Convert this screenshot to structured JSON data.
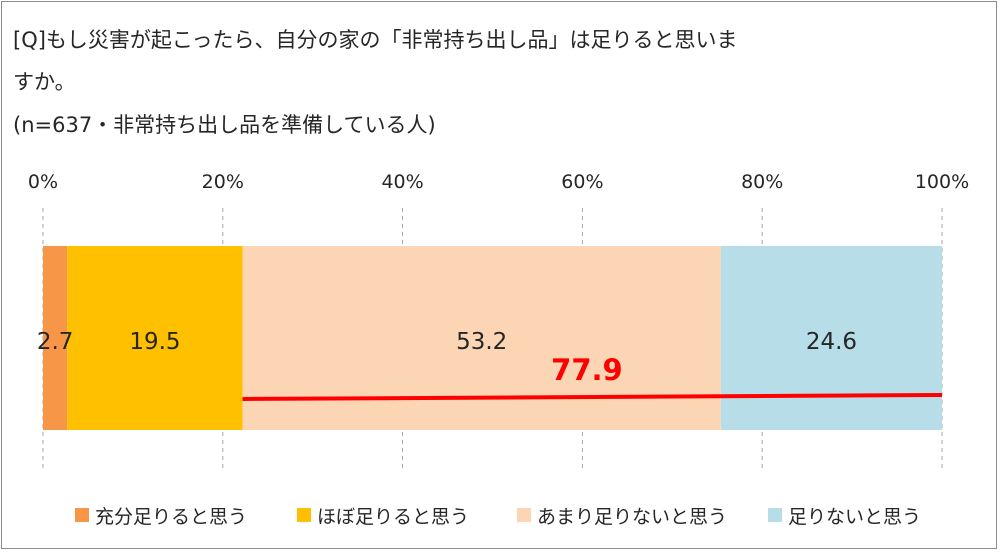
{
  "title": {
    "line1": "[Q]もし災害が起こったら、自分の家の「非常持ち出し品」は足りると思いま",
    "line2": "すか。",
    "line3": "(n=637・非常持ち出し品を準備している人)"
  },
  "chart_data": {
    "type": "bar",
    "orientation": "horizontal-stacked-100",
    "xlim": [
      0,
      100
    ],
    "ticks": [
      "0%",
      "20%",
      "40%",
      "60%",
      "80%",
      "100%"
    ],
    "tick_values": [
      0,
      20,
      40,
      60,
      80,
      100
    ],
    "grid": "vertical-dashed",
    "series": [
      {
        "name": "充分足りると思う",
        "value": 2.7,
        "label": "2.7",
        "color": "#f79646"
      },
      {
        "name": "ほぼ足りると思う",
        "value": 19.5,
        "label": "19.5",
        "color": "#ffc000"
      },
      {
        "name": "あまり足りないと思う",
        "value": 53.2,
        "label": "53.2",
        "color": "#fcd5b5"
      },
      {
        "name": "足りないと思う",
        "value": 24.6,
        "label": "24.6",
        "color": "#b7dee8"
      }
    ],
    "annotation": {
      "text": "77.9",
      "color": "#ff0000",
      "spans_series": [
        "あまり足りないと思う",
        "足りないと思う"
      ]
    },
    "legend_position": "bottom"
  }
}
